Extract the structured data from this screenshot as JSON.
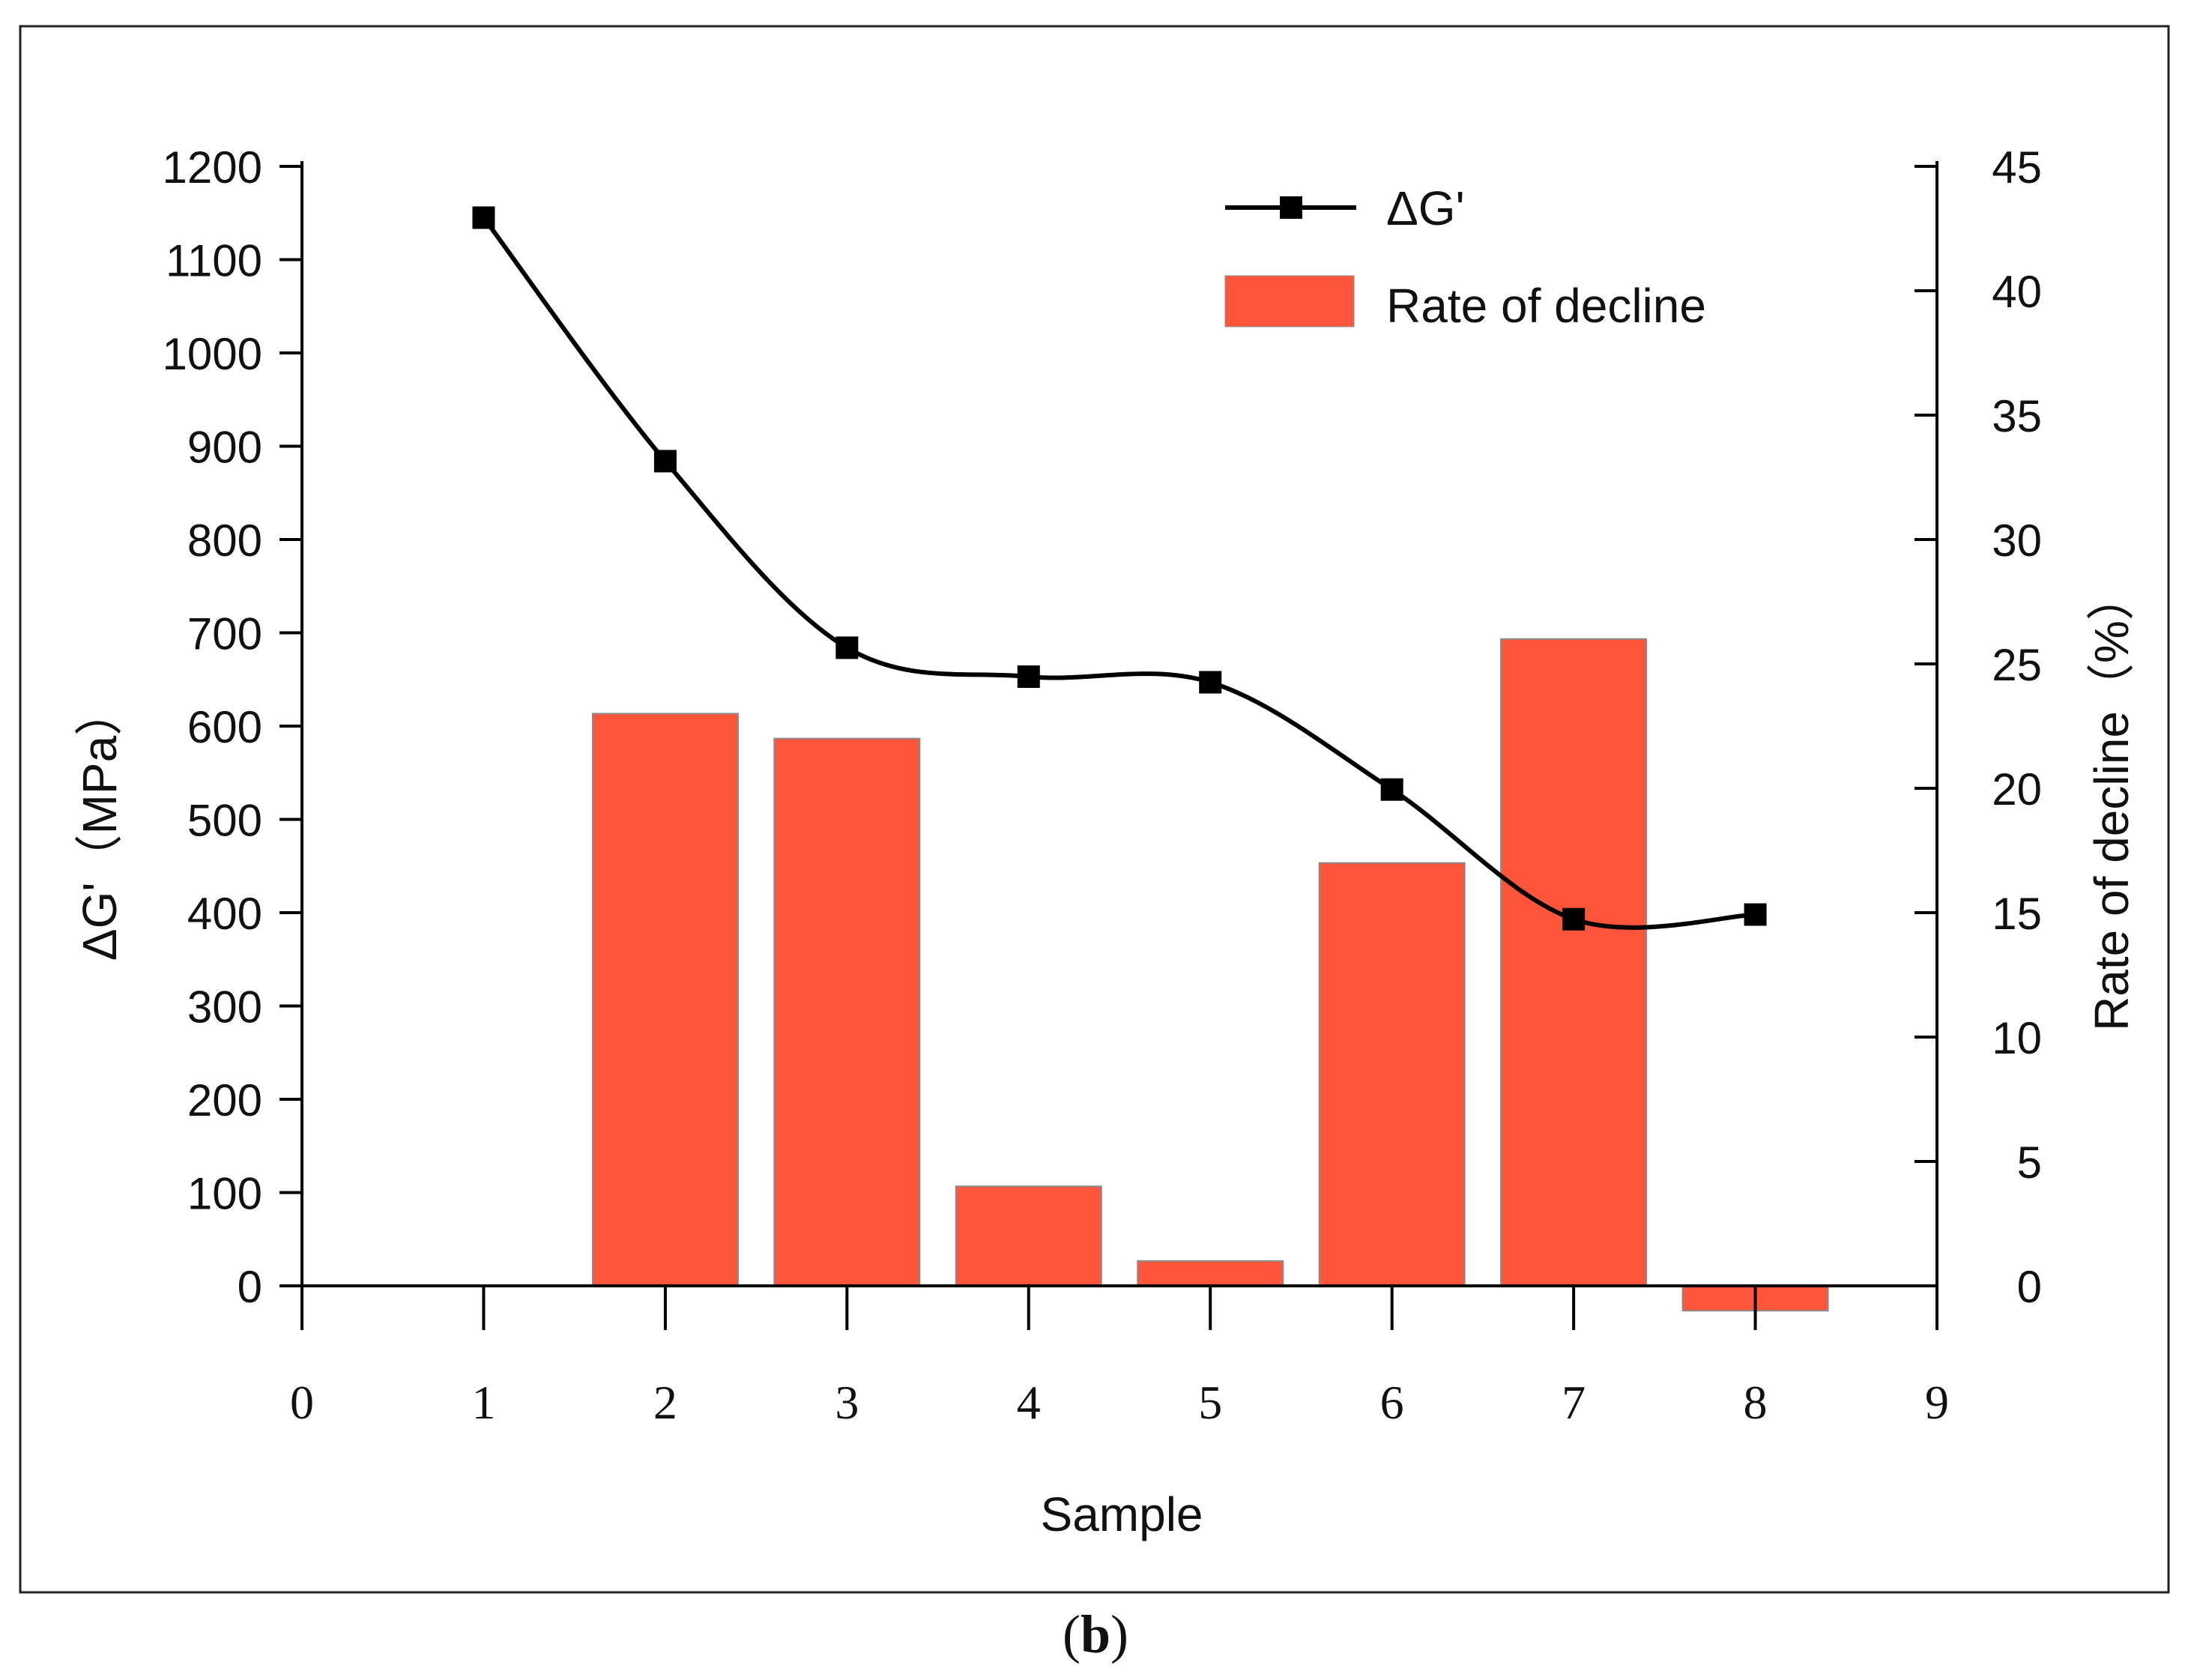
{
  "panel_label": {
    "open": "(",
    "letter": "b",
    "close": ")"
  },
  "colors": {
    "bar": "#FF553B",
    "bar_stroke": "#8a8a8a",
    "line": "#000000",
    "axis": "#000000"
  },
  "chart_data": {
    "type": "bar+line",
    "xlabel": "Sample",
    "ylabel_left": "ΔG'（MPa）",
    "ylabel_right": "Rate of decline（%）",
    "x_ticks": [
      "0",
      "1",
      "2",
      "3",
      "4",
      "5",
      "6",
      "7",
      "8",
      "9"
    ],
    "xlim": [
      0,
      9
    ],
    "y_left_ticks": [
      "0",
      "100",
      "200",
      "300",
      "400",
      "500",
      "600",
      "700",
      "800",
      "900",
      "1000",
      "1100",
      "1200"
    ],
    "ylim_left": [
      0,
      1200
    ],
    "y_right_ticks": [
      "0",
      "5",
      "10",
      "15",
      "20",
      "25",
      "30",
      "35",
      "40",
      "45"
    ],
    "ylim_right": [
      0,
      45
    ],
    "legend": {
      "line_label": "ΔG'",
      "bar_label": "Rate of decline",
      "position": "top-right"
    },
    "series": [
      {
        "name": "ΔG'",
        "kind": "line",
        "axis": "left",
        "x": [
          1,
          2,
          3,
          4,
          5,
          6,
          7,
          8
        ],
        "values": [
          1145,
          884,
          684,
          653,
          647,
          532,
          393,
          398
        ]
      },
      {
        "name": "Rate of decline",
        "kind": "bar",
        "axis": "right",
        "x": [
          2,
          3,
          4,
          5,
          6,
          7,
          8
        ],
        "values": [
          23.0,
          22.0,
          4.0,
          1.0,
          17.0,
          26.0,
          -1.0
        ]
      }
    ]
  }
}
